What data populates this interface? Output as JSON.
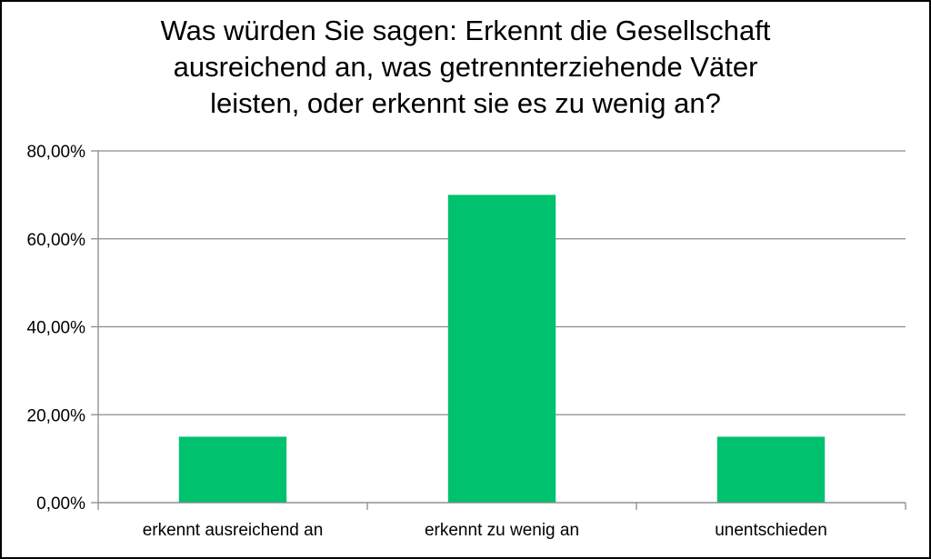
{
  "chart_data": {
    "type": "bar",
    "title_lines": [
      "Was würden Sie sagen: Erkennt die Gesellschaft",
      "ausreichend an, was getrennterziehende Väter",
      "leisten, oder erkennt sie es zu wenig an?"
    ],
    "categories": [
      "erkennt ausreichend an",
      "erkennt zu wenig an",
      "unentschieden"
    ],
    "values": [
      15,
      70,
      15
    ],
    "ylim": [
      0,
      80
    ],
    "yticks": [
      0,
      20,
      40,
      60,
      80
    ],
    "ytick_labels": [
      "0,00%",
      "20,00%",
      "40,00%",
      "60,00%",
      "80,00%"
    ],
    "grid": true,
    "colors": {
      "bar": "#00C16E",
      "grid": "#8C8C8C",
      "axis": "#8C8C8C"
    }
  }
}
